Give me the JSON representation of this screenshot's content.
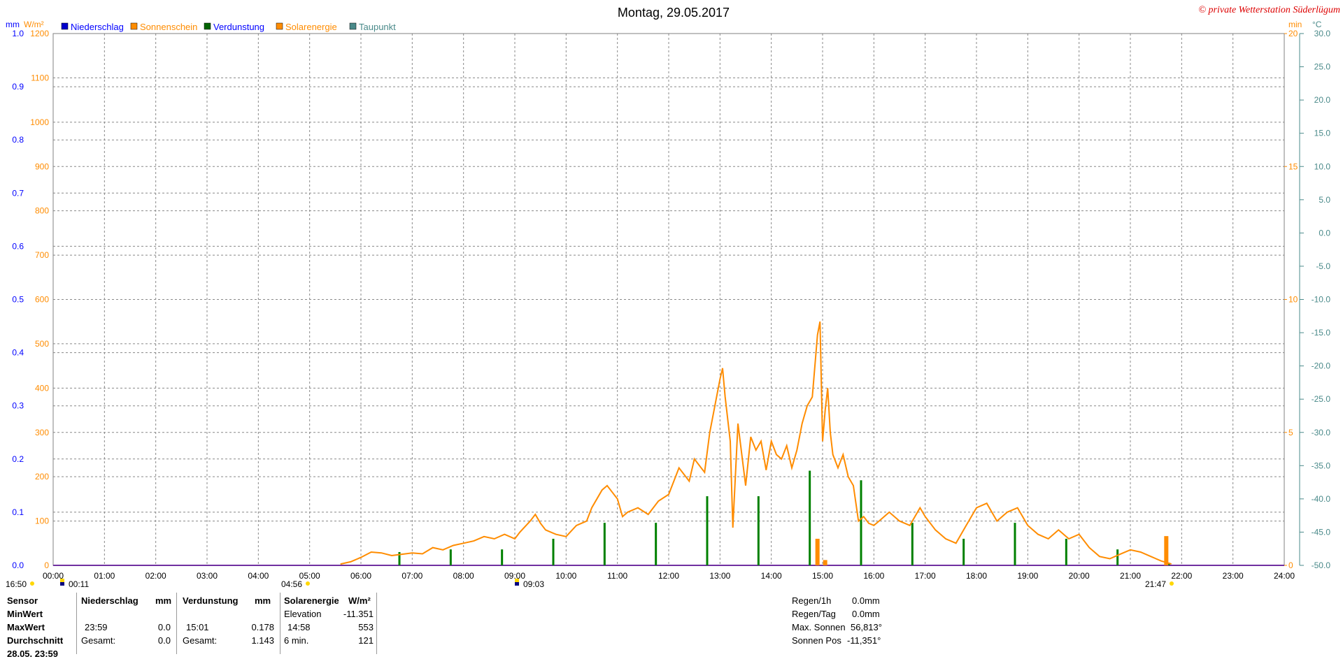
{
  "title": "Montag, 29.05.2017",
  "copyright": "© private Wetterstation Süderlügum",
  "colors": {
    "rain": "#0000ff",
    "sunshine": "#ff8c00",
    "evap": "#008000",
    "solar": "#ff8c00",
    "dew": "#4a8a8a",
    "grid": "#888888",
    "axis": "#808080"
  },
  "legend": [
    {
      "label": "Niederschlag",
      "color": "#0000cc",
      "text_color": "#0000ff"
    },
    {
      "label": "Sonnenschein",
      "color": "#ff8c00",
      "text_color": "#ff8c00"
    },
    {
      "label": "Verdunstung",
      "color": "#006400",
      "text_color": "#0000ff"
    },
    {
      "label": "Solarenergie",
      "color": "#ff8c00",
      "text_color": "#ff8c00"
    },
    {
      "label": "Taupunkt",
      "color": "#4a8a8a",
      "text_color": "#4a8a8a"
    }
  ],
  "axis_units": {
    "mm": "mm",
    "wm2": "W/m²",
    "min": "min",
    "celsius": "°C"
  },
  "chart_data": {
    "type": "line",
    "title": "Montag, 29.05.2017",
    "x_ticks": [
      "00:00",
      "01:00",
      "02:00",
      "03:00",
      "04:00",
      "05:00",
      "06:00",
      "07:00",
      "08:00",
      "09:00",
      "10:00",
      "11:00",
      "12:00",
      "13:00",
      "14:00",
      "15:00",
      "16:00",
      "17:00",
      "18:00",
      "19:00",
      "20:00",
      "21:00",
      "22:00",
      "23:00",
      "24:00"
    ],
    "xlim": [
      0,
      24
    ],
    "axes": {
      "mm": {
        "range": [
          0,
          1.0
        ],
        "ticks": [
          "0.0",
          "0.1",
          "0.2",
          "0.3",
          "0.4",
          "0.5",
          "0.6",
          "0.7",
          "0.8",
          "0.9",
          "1.0"
        ]
      },
      "wm2": {
        "range": [
          0,
          1200
        ],
        "ticks": [
          "0",
          "100",
          "200",
          "300",
          "400",
          "500",
          "600",
          "700",
          "800",
          "900",
          "1000",
          "1100",
          "1200"
        ]
      },
      "min": {
        "range": [
          0,
          20
        ],
        "ticks": [
          "0",
          "5",
          "10",
          "15",
          "20"
        ]
      },
      "celsius": {
        "range": [
          -50,
          30
        ],
        "ticks": [
          "-50.0",
          "-45.0",
          "-40.0",
          "-35.0",
          "-30.0",
          "-25.0",
          "-20.0",
          "-15.0",
          "-10.0",
          "-5.0",
          "0.0",
          "5.0",
          "10.0",
          "15.0",
          "20.0",
          "25.0",
          "30.0"
        ]
      }
    },
    "grid": true,
    "series": [
      {
        "name": "Solarenergie",
        "unit": "W/m²",
        "color": "#ff8c00",
        "x": [
          5.6,
          5.8,
          6.0,
          6.2,
          6.4,
          6.6,
          6.8,
          7.0,
          7.2,
          7.4,
          7.6,
          7.8,
          8.0,
          8.2,
          8.4,
          8.6,
          8.8,
          9.0,
          9.1,
          9.3,
          9.4,
          9.5,
          9.6,
          9.8,
          10.0,
          10.2,
          10.4,
          10.5,
          10.7,
          10.8,
          11.0,
          11.1,
          11.2,
          11.4,
          11.6,
          11.8,
          12.0,
          12.2,
          12.4,
          12.5,
          12.7,
          12.8,
          13.0,
          13.05,
          13.1,
          13.2,
          13.25,
          13.35,
          13.5,
          13.6,
          13.7,
          13.8,
          13.9,
          14.0,
          14.1,
          14.2,
          14.3,
          14.4,
          14.5,
          14.6,
          14.7,
          14.8,
          14.9,
          14.95,
          15.0,
          15.05,
          15.1,
          15.15,
          15.2,
          15.3,
          15.4,
          15.5,
          15.6,
          15.7,
          15.8,
          15.9,
          16.0,
          16.1,
          16.3,
          16.5,
          16.7,
          16.9,
          17.0,
          17.2,
          17.4,
          17.6,
          17.8,
          18.0,
          18.2,
          18.4,
          18.6,
          18.8,
          19.0,
          19.2,
          19.4,
          19.6,
          19.8,
          20.0,
          20.2,
          20.4,
          20.6,
          20.8,
          21.0,
          21.2,
          21.4,
          21.6,
          21.8
        ],
        "y": [
          3,
          8,
          18,
          30,
          28,
          22,
          25,
          28,
          26,
          40,
          35,
          45,
          50,
          55,
          65,
          60,
          70,
          60,
          75,
          100,
          115,
          95,
          80,
          70,
          65,
          90,
          100,
          130,
          170,
          180,
          150,
          110,
          120,
          130,
          115,
          145,
          160,
          220,
          190,
          240,
          210,
          300,
          420,
          445,
          380,
          280,
          85,
          320,
          180,
          290,
          260,
          280,
          215,
          280,
          250,
          240,
          270,
          220,
          260,
          320,
          360,
          380,
          520,
          550,
          280,
          350,
          400,
          300,
          250,
          220,
          250,
          200,
          180,
          100,
          110,
          95,
          90,
          100,
          120,
          100,
          90,
          130,
          110,
          80,
          60,
          50,
          90,
          130,
          140,
          100,
          120,
          130,
          90,
          70,
          60,
          80,
          60,
          70,
          40,
          20,
          15,
          25,
          35,
          30,
          20,
          10,
          3
        ]
      },
      {
        "name": "Verdunstung",
        "unit": "mm",
        "color": "#008000",
        "x": [
          6.75,
          7.75,
          8.75,
          9.75,
          10.75,
          11.75,
          12.75,
          13.75,
          14.75,
          15.75,
          16.75,
          17.75,
          18.75,
          19.75,
          20.75,
          21.75
        ],
        "y": [
          0.025,
          0.03,
          0.03,
          0.05,
          0.08,
          0.08,
          0.13,
          0.13,
          0.178,
          0.16,
          0.08,
          0.05,
          0.08,
          0.05,
          0.03,
          0.005
        ]
      },
      {
        "name": "Sonnenschein",
        "unit": "min",
        "color": "#ff8c00",
        "x": [
          14.9,
          15.05,
          21.7
        ],
        "y": [
          1.0,
          0.2,
          1.1
        ]
      }
    ]
  },
  "time_markers": [
    {
      "label": "16:50",
      "style": "sunset"
    },
    {
      "label": "00:11",
      "style": "moon"
    },
    {
      "label": "04:56",
      "style": "sunrise"
    },
    {
      "label": "09:03",
      "style": "moon"
    },
    {
      "label": "21:47",
      "style": "sunset"
    }
  ],
  "stats": {
    "headers": {
      "sensor": "Sensor",
      "rain": "Niederschlag",
      "rain_unit": "mm",
      "evap": "Verdunstung",
      "evap_unit": "mm",
      "solar": "Solarenergie",
      "solar_unit": "W/m²"
    },
    "row_labels": {
      "min": "MinWert",
      "max": "MaxWert",
      "avg": "Durchschnitt",
      "partial": "28.05. 23:59"
    },
    "max": {
      "rain_time": "23:59",
      "rain_val": "0.0",
      "evap_time": "15:01",
      "evap_val": "0.178",
      "solar_time": "14:58",
      "solar_val": "553"
    },
    "elevation": {
      "label": "Elevation",
      "value": "-11.351"
    },
    "avg": {
      "rain_label": "Gesamt:",
      "rain_val": "0.0",
      "evap_label": "Gesamt:",
      "evap_val": "1.143",
      "solar_label": "6 min.",
      "solar_val": "121"
    },
    "right": {
      "regen_1h": {
        "label": "Regen/1h",
        "value": "0.0mm"
      },
      "regen_tag": {
        "label": "Regen/Tag",
        "value": "0.0mm"
      },
      "max_sonnen": {
        "label": "Max. Sonnen",
        "value": "56,813°"
      },
      "sonnen_pos": {
        "label": "Sonnen Pos",
        "value": "-11,351°"
      }
    }
  }
}
